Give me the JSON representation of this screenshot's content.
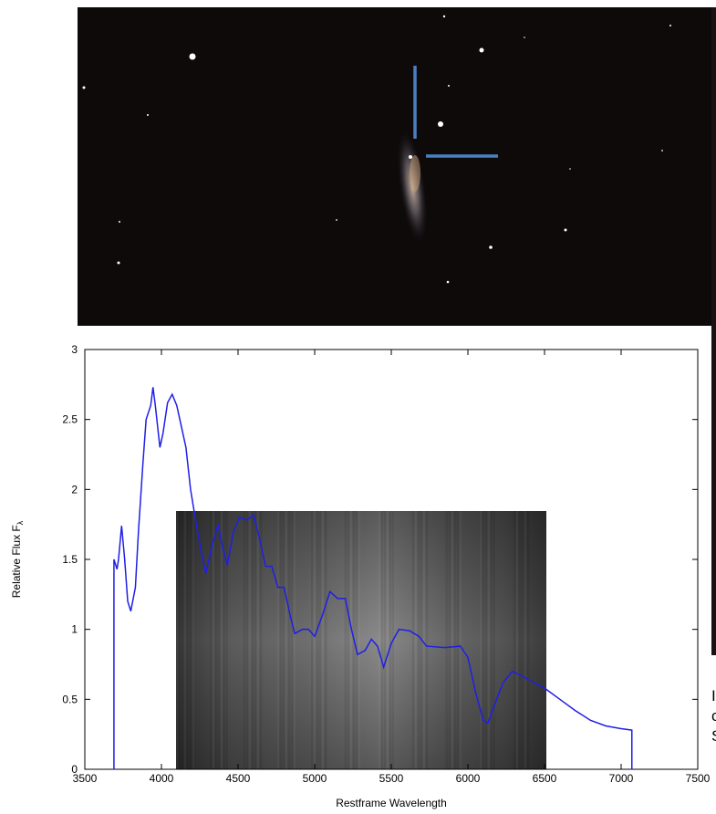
{
  "chart_data": {
    "type": "line",
    "x_label": "Restframe Wavelength",
    "y_label": "Relative Flux F",
    "y_label_subscript": "λ",
    "x": [
      3690,
      3690,
      3710,
      3720,
      3740,
      3760,
      3780,
      3800,
      3830,
      3850,
      3880,
      3900,
      3930,
      3945,
      3960,
      3990,
      4010,
      4040,
      4070,
      4100,
      4130,
      4160,
      4190,
      4220,
      4260,
      4290,
      4330,
      4370,
      4400,
      4430,
      4470,
      4510,
      4560,
      4600,
      4640,
      4680,
      4720,
      4760,
      4800,
      4840,
      4870,
      4920,
      4960,
      5000,
      5050,
      5100,
      5150,
      5200,
      5240,
      5280,
      5330,
      5370,
      5410,
      5450,
      5500,
      5550,
      5620,
      5680,
      5730,
      5850,
      5950,
      6000,
      6050,
      6100,
      6130,
      6170,
      6230,
      6290,
      6400,
      6500,
      6600,
      6700,
      6800,
      6900,
      7000,
      7070,
      7070
    ],
    "values": [
      0,
      1.5,
      1.43,
      1.5,
      1.74,
      1.5,
      1.2,
      1.13,
      1.3,
      1.7,
      2.2,
      2.5,
      2.6,
      2.73,
      2.6,
      2.3,
      2.4,
      2.62,
      2.68,
      2.6,
      2.45,
      2.3,
      2.0,
      1.8,
      1.55,
      1.4,
      1.6,
      1.75,
      1.58,
      1.46,
      1.7,
      1.8,
      1.78,
      1.82,
      1.65,
      1.45,
      1.45,
      1.3,
      1.3,
      1.1,
      0.97,
      1.0,
      1.0,
      0.95,
      1.1,
      1.27,
      1.22,
      1.22,
      1.0,
      0.82,
      0.85,
      0.93,
      0.88,
      0.73,
      0.9,
      1.0,
      0.99,
      0.95,
      0.88,
      0.87,
      0.88,
      0.8,
      0.55,
      0.35,
      0.33,
      0.45,
      0.62,
      0.7,
      0.64,
      0.58,
      0.5,
      0.42,
      0.35,
      0.31,
      0.29,
      0.28,
      0
    ],
    "color": "#1f1fe6",
    "xlim": [
      3500,
      7500
    ],
    "xticks": [
      3500,
      4000,
      4500,
      5000,
      5500,
      6000,
      6500,
      7000,
      7500
    ],
    "ylim": [
      0,
      3
    ],
    "yticks": [
      0,
      0.5,
      1,
      1.5,
      2,
      2.5,
      3
    ]
  },
  "side_text": [
    "I",
    "c",
    "S"
  ]
}
